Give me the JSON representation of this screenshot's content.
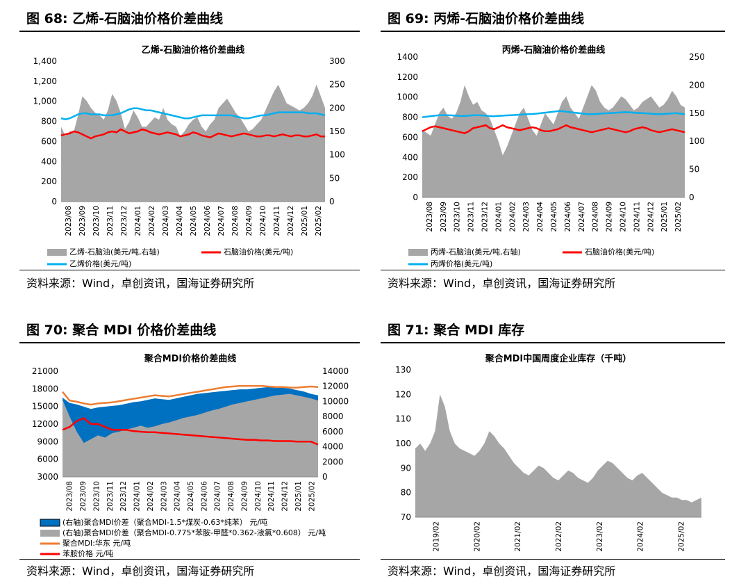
{
  "panels": [
    {
      "fig_title": "图 68:  乙烯-石脑油价格价差曲线",
      "source": "资料来源：Wind，卓创资讯，国海证券研究所",
      "chart_data": {
        "type": "area",
        "title": "乙烯-石脑油价格价差曲线",
        "x_labels": [
          "2023/08",
          "2023/09",
          "2023/10",
          "2023/11",
          "2023/12",
          "2024/01",
          "2024/02",
          "2024/03",
          "2024/04",
          "2024/05",
          "2024/06",
          "2024/07",
          "2024/08",
          "2024/09",
          "2024/10",
          "2024/11",
          "2024/12",
          "2025/01",
          "2025/02"
        ],
        "y_left": {
          "min": 0,
          "max": 1400,
          "ticks": [
            "0",
            "200",
            "400",
            "600",
            "800",
            "1,000",
            "1,200",
            "1,400"
          ]
        },
        "y_right": {
          "min": 0,
          "max": 300,
          "ticks": [
            "0",
            "50",
            "100",
            "150",
            "200",
            "250",
            "300"
          ]
        },
        "series": [
          {
            "name": "乙烯-石脑油(美元/吨,右轴)",
            "type": "area",
            "axis": "right",
            "color": "#a6a6a6",
            "values": [
              160,
              140,
              150,
              150,
              185,
              225,
              215,
              200,
              190,
              185,
              175,
              195,
              230,
              215,
              190,
              155,
              170,
              195,
              180,
              160,
              160,
              170,
              180,
              175,
              200,
              175,
              165,
              160,
              140,
              150,
              165,
              175,
              180,
              160,
              150,
              165,
              175,
              200,
              210,
              220,
              205,
              190,
              180,
              165,
              150,
              155,
              165,
              175,
              195,
              215,
              235,
              250,
              230,
              210,
              205,
              200,
              195,
              200,
              210,
              225,
              250,
              225,
              200
            ]
          },
          {
            "name": "石脑油价格(美元/吨)",
            "type": "line",
            "axis": "left",
            "color": "#ff0000",
            "values": [
              660,
              670,
              680,
              700,
              690,
              670,
              650,
              630,
              650,
              660,
              670,
              690,
              700,
              690,
              720,
              700,
              680,
              690,
              700,
              720,
              710,
              690,
              680,
              670,
              680,
              690,
              680,
              670,
              650,
              660,
              670,
              690,
              680,
              660,
              650,
              640,
              660,
              680,
              670,
              660,
              650,
              660,
              670,
              680,
              670,
              660,
              650,
              650,
              660,
              660,
              650,
              660,
              670,
              660,
              650,
              660,
              660,
              650,
              650,
              660,
              670,
              650,
              650
            ]
          },
          {
            "name": "乙烯价格(美元/吨)",
            "type": "line",
            "axis": "left",
            "color": "#00b0f0",
            "values": [
              830,
              820,
              830,
              850,
              870,
              880,
              880,
              870,
              870,
              870,
              860,
              860,
              860,
              870,
              880,
              900,
              920,
              930,
              930,
              920,
              910,
              910,
              900,
              890,
              880,
              870,
              860,
              850,
              840,
              830,
              830,
              840,
              850,
              860,
              860,
              860,
              860,
              860,
              860,
              860,
              860,
              850,
              840,
              830,
              830,
              840,
              850,
              860,
              860,
              870,
              880,
              890,
              890,
              890,
              890,
              890,
              890,
              890,
              880,
              880,
              880,
              870,
              860
            ]
          }
        ],
        "legend": [
          "乙烯-石脑油(美元/吨,右轴)",
          "石脑油价格(美元/吨)",
          "乙烯价格(美元/吨)"
        ]
      }
    },
    {
      "fig_title": "图 69:  丙烯-石脑油价格价差曲线",
      "source": "资料来源：Wind，卓创资讯，国海证券研究所",
      "chart_data": {
        "type": "area",
        "title": "丙烯-石脑油价格价差曲线",
        "x_labels": [
          "2023/08",
          "2023/09",
          "2023/10",
          "2023/11",
          "2023/12",
          "2024/01",
          "2024/02",
          "2024/03",
          "2024/04",
          "2024/05",
          "2024/06",
          "2024/07",
          "2024/08",
          "2024/09",
          "2024/10",
          "2024/11",
          "2024/12",
          "2025/01",
          "2025/02"
        ],
        "y_left": {
          "min": 0,
          "max": 1400,
          "ticks": [
            "0",
            "200",
            "400",
            "600",
            "800",
            "1000",
            "1200",
            "1400"
          ]
        },
        "y_right": {
          "min": 0,
          "max": 250,
          "ticks": [
            "0",
            "50",
            "100",
            "150",
            "200",
            "250"
          ]
        },
        "series": [
          {
            "name": "丙烯-石脑油(美元/吨,右轴)",
            "type": "area",
            "axis": "right",
            "color": "#a6a6a6",
            "values": [
              120,
              115,
              110,
              130,
              150,
              160,
              145,
              140,
              150,
              170,
              200,
              180,
              165,
              170,
              155,
              150,
              140,
              120,
              100,
              75,
              90,
              110,
              130,
              150,
              160,
              140,
              120,
              110,
              130,
              150,
              140,
              130,
              150,
              170,
              180,
              160,
              150,
              140,
              160,
              180,
              200,
              190,
              170,
              160,
              155,
              160,
              170,
              180,
              175,
              165,
              155,
              160,
              170,
              175,
              180,
              170,
              160,
              165,
              175,
              190,
              180,
              165,
              160
            ]
          },
          {
            "name": "石脑油价格(美元/吨)",
            "type": "line",
            "axis": "left",
            "color": "#ff0000",
            "values": [
              660,
              680,
              700,
              710,
              700,
              690,
              680,
              670,
              660,
              650,
              640,
              660,
              690,
              700,
              710,
              720,
              690,
              680,
              700,
              720,
              700,
              690,
              680,
              670,
              680,
              690,
              700,
              690,
              670,
              660,
              660,
              670,
              680,
              700,
              720,
              700,
              690,
              680,
              670,
              660,
              650,
              660,
              670,
              680,
              690,
              680,
              670,
              660,
              650,
              660,
              680,
              690,
              700,
              690,
              670,
              660,
              650,
              660,
              670,
              680,
              670,
              660,
              650
            ]
          },
          {
            "name": "丙烯价格(美元/吨)",
            "type": "line",
            "axis": "left",
            "color": "#00b0f0",
            "values": [
              800,
              805,
              810,
              815,
              820,
              820,
              820,
              818,
              815,
              812,
              812,
              815,
              820,
              820,
              818,
              815,
              810,
              810,
              812,
              815,
              818,
              820,
              822,
              825,
              828,
              830,
              832,
              835,
              840,
              845,
              850,
              855,
              860,
              860,
              855,
              850,
              845,
              840,
              835,
              830,
              830,
              832,
              835,
              838,
              840,
              842,
              845,
              848,
              850,
              848,
              845,
              842,
              840,
              838,
              835,
              832,
              830,
              832,
              835,
              838,
              840,
              835,
              830
            ]
          }
        ],
        "legend": [
          "丙烯-石脑油(美元/吨,右轴)",
          "石脑油价格(美元/吨)",
          "丙烯价格(美元/吨)"
        ]
      }
    },
    {
      "fig_title": "图 70:  聚合 MDI 价格价差曲线",
      "source": "资料来源：Wind，卓创资讯，国海证券研究所",
      "chart_data": {
        "type": "area",
        "title": "聚合MDI价格价差曲线",
        "x_labels": [
          "2023/08",
          "2023/09",
          "2023/10",
          "2023/11",
          "2023/12",
          "2024/01",
          "2024/02",
          "2024/03",
          "2024/04",
          "2024/05",
          "2024/06",
          "2024/07",
          "2024/08",
          "2024/09",
          "2024/10",
          "2024/11",
          "2024/12",
          "2025/01",
          "2025/02"
        ],
        "y_left": {
          "min": 3000,
          "max": 21000,
          "ticks": [
            "3000",
            "6000",
            "9000",
            "12000",
            "15000",
            "18000",
            "21000"
          ]
        },
        "y_right": {
          "min": 0,
          "max": 14000,
          "ticks": [
            "0",
            "2000",
            "4000",
            "6000",
            "8000",
            "10000",
            "12000",
            "14000"
          ]
        },
        "series": [
          {
            "name": "(右轴)聚合MDI价差（聚合MDI-1.5*煤炭-0.63*纯苯）元/吨",
            "type": "area",
            "axis": "right",
            "color": "#0070c0",
            "values": [
              10500,
              9800,
              9600,
              9300,
              9000,
              9200,
              9300,
              9400,
              9500,
              9700,
              9900,
              10000,
              10200,
              10400,
              10300,
              10200,
              10400,
              10600,
              10800,
              11000,
              11100,
              11200,
              11300,
              11400,
              11500,
              11600,
              11600,
              11700,
              11800,
              11900,
              11900,
              11800,
              11700,
              11500,
              11300,
              11000,
              10800
            ]
          },
          {
            "name": "(右轴)聚合MDI价差（聚合MDI-0.775*苯胺-甲醛*0.362-液氯*0.608）元/吨",
            "type": "area",
            "axis": "right",
            "color": "#a6a6a6",
            "values": [
              10200,
              8000,
              6000,
              4500,
              5000,
              5500,
              5200,
              5800,
              6000,
              6300,
              6500,
              6800,
              6500,
              6700,
              7000,
              7200,
              7500,
              7800,
              8000,
              8200,
              8500,
              8800,
              9000,
              9300,
              9600,
              9800,
              10000,
              10200,
              10400,
              10600,
              10800,
              10900,
              11000,
              10800,
              10600,
              10400,
              10100
            ]
          },
          {
            "name": "聚合MDI:华东 元/吨",
            "type": "line",
            "axis": "left",
            "color": "#ed7d31",
            "values": [
              17500,
              16000,
              15800,
              15500,
              15300,
              15500,
              15600,
              15700,
              15900,
              16100,
              16300,
              16500,
              16700,
              16900,
              16800,
              16700,
              16900,
              17100,
              17300,
              17500,
              17700,
              17900,
              18100,
              18300,
              18400,
              18500,
              18500,
              18500,
              18500,
              18400,
              18300,
              18300,
              18200,
              18200,
              18300,
              18400,
              18300
            ]
          },
          {
            "name": "苯胺价格 元/吨",
            "type": "line",
            "axis": "left",
            "color": "#ff0000",
            "values": [
              11000,
              11500,
              12500,
              13000,
              12000,
              12000,
              11500,
              11000,
              11000,
              11000,
              10800,
              10700,
              10600,
              10600,
              10500,
              10400,
              10300,
              10200,
              10100,
              10000,
              9900,
              9800,
              9700,
              9600,
              9500,
              9400,
              9300,
              9300,
              9200,
              9200,
              9100,
              9100,
              9100,
              9000,
              9000,
              9000,
              8500
            ]
          }
        ],
        "legend": [
          "(右轴)聚合MDI价差（聚合MDI-1.5*煤炭-0.63*纯苯） 元/吨",
          "(右轴)聚合MDI价差（聚合MDI-0.775*苯胺-甲醛*0.362-液氯*0.608） 元/吨",
          "聚合MDI:华东 元/吨",
          "苯胺价格 元/吨"
        ]
      }
    },
    {
      "fig_title": "图 71:  聚合 MDI 库存",
      "source": "资料来源：Wind，卓创资讯，国海证券研究所",
      "chart_data": {
        "type": "area",
        "title": "聚合MDI中国周度企业库存（千吨）",
        "x_labels": [
          "2019/02",
          "2020/02",
          "2021/02",
          "2022/02",
          "2023/02",
          "2024/02",
          "2025/02"
        ],
        "y_left": {
          "min": 70,
          "max": 130,
          "ticks": [
            "70",
            "80",
            "90",
            "100",
            "110",
            "120",
            "130"
          ]
        },
        "series": [
          {
            "name": "聚合MDI中国周度企业库存（千吨）",
            "type": "area",
            "axis": "left",
            "color": "#a6a6a6",
            "values": [
              98,
              100,
              97,
              100,
              105,
              120,
              115,
              105,
              100,
              98,
              97,
              96,
              95,
              97,
              100,
              105,
              103,
              100,
              98,
              95,
              92,
              90,
              88,
              87,
              89,
              91,
              90,
              88,
              86,
              85,
              87,
              89,
              88,
              86,
              85,
              84,
              86,
              89,
              91,
              93,
              92,
              90,
              88,
              86,
              85,
              87,
              88,
              86,
              84,
              82,
              80,
              79,
              78,
              78,
              77,
              77,
              76,
              77,
              78
            ]
          }
        ]
      }
    }
  ]
}
